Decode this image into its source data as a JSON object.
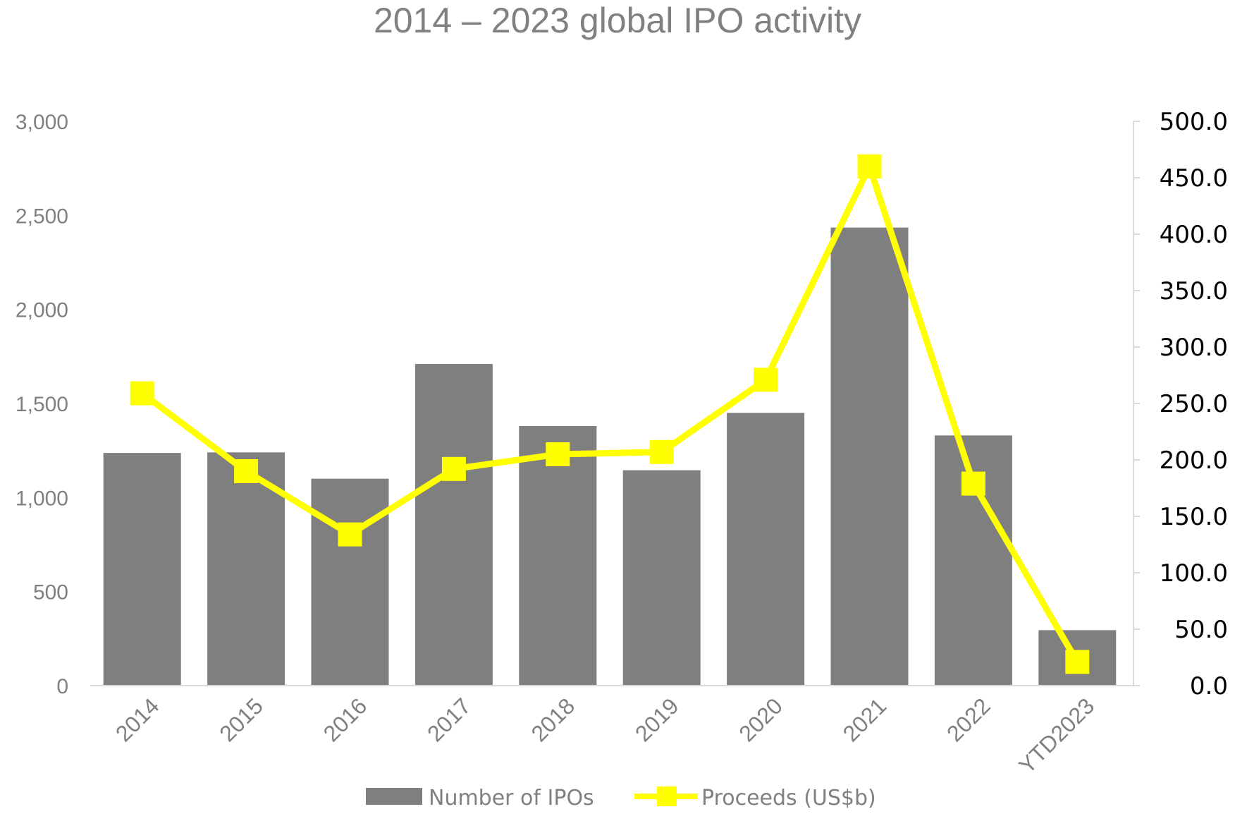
{
  "colors": {
    "bar": "#7f7f7f",
    "line": "#ffff00",
    "axis": "#d9d9d9",
    "text": "#808080"
  },
  "chart_data": {
    "type": "bar",
    "title": "2014 – 2023 global IPO activity",
    "categories": [
      "2014",
      "2015",
      "2016",
      "2017",
      "2018",
      "2019",
      "2020",
      "2021",
      "2022",
      "YTD2023"
    ],
    "series": [
      {
        "name": "Number of IPOs",
        "type": "bar",
        "axis": "left",
        "values": [
          1237,
          1240,
          1100,
          1710,
          1380,
          1145,
          1450,
          2435,
          1330,
          295
        ]
      },
      {
        "name": "Proceeds (US$b)",
        "type": "line",
        "axis": "right",
        "values": [
          259,
          190,
          134,
          192,
          205,
          207,
          271,
          460,
          179,
          21
        ]
      }
    ],
    "y_left": {
      "min": 0,
      "max": 3000,
      "ticks": [
        "0",
        "500",
        "1,000",
        "1,500",
        "2,000",
        "2,500",
        "3,000"
      ]
    },
    "y_right": {
      "min": 0,
      "max": 500,
      "ticks": [
        "0.0",
        "50.0",
        "100.0",
        "150.0",
        "200.0",
        "250.0",
        "300.0",
        "350.0",
        "400.0",
        "450.0",
        "500.0"
      ]
    },
    "legend": {
      "position": "bottom",
      "items": [
        "Number of IPOs",
        "Proceeds (US$b)"
      ]
    }
  }
}
